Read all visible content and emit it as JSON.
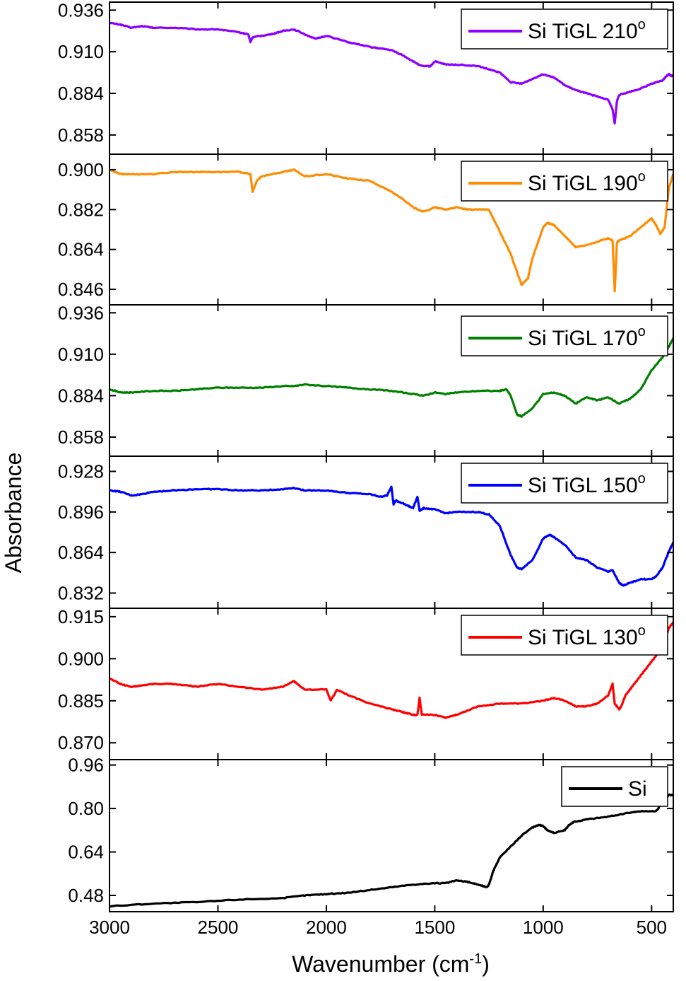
{
  "chart_data": {
    "type": "line",
    "ylabel": "Absorbance",
    "xlabel": "Wavenumber (cm",
    "xlabel_sup": "-1",
    "xlabel_end": ")",
    "x_reversed": true,
    "xlim": [
      3000,
      400
    ],
    "x_ticks": [
      "3000",
      "2500",
      "2000",
      "1500",
      "1000",
      "500"
    ],
    "legend_placement": "top-right in each panel",
    "panels": [
      {
        "name": "Si TiGL 210",
        "legend_label": "Si TiGL 210",
        "legend_sup": "o",
        "color": "#8b00ff",
        "ylim": [
          0.846,
          0.941
        ],
        "y_ticks": [
          "0.936",
          "0.910",
          "0.884",
          "0.858"
        ],
        "x": [
          3000,
          2950,
          2900,
          2850,
          2800,
          2700,
          2600,
          2500,
          2400,
          2360,
          2350,
          2340,
          2300,
          2250,
          2200,
          2150,
          2100,
          2050,
          2000,
          1900,
          1800,
          1750,
          1700,
          1650,
          1600,
          1560,
          1520,
          1500,
          1450,
          1400,
          1300,
          1250,
          1200,
          1150,
          1100,
          1050,
          1000,
          950,
          900,
          850,
          800,
          750,
          700,
          680,
          670,
          660,
          650,
          600,
          550,
          500,
          450,
          430,
          420,
          410,
          400
        ],
        "y": [
          0.928,
          0.927,
          0.925,
          0.926,
          0.925,
          0.925,
          0.924,
          0.924,
          0.922,
          0.921,
          0.916,
          0.919,
          0.92,
          0.921,
          0.923,
          0.924,
          0.921,
          0.918,
          0.92,
          0.916,
          0.913,
          0.912,
          0.911,
          0.908,
          0.904,
          0.901,
          0.901,
          0.904,
          0.902,
          0.902,
          0.901,
          0.899,
          0.897,
          0.891,
          0.89,
          0.893,
          0.896,
          0.894,
          0.889,
          0.886,
          0.884,
          0.882,
          0.88,
          0.874,
          0.865,
          0.879,
          0.883,
          0.885,
          0.887,
          0.89,
          0.892,
          0.895,
          0.896,
          0.895,
          0.895
        ]
      },
      {
        "name": "Si TiGL 190",
        "legend_label": "Si TiGL 190",
        "legend_sup": "o",
        "color": "#ff8c00",
        "ylim": [
          0.839,
          0.907
        ],
        "y_ticks": [
          "0.900",
          "0.882",
          "0.864",
          "0.846"
        ],
        "x": [
          3000,
          2950,
          2900,
          2800,
          2700,
          2600,
          2500,
          2400,
          2350,
          2340,
          2320,
          2300,
          2200,
          2150,
          2100,
          2000,
          1900,
          1800,
          1700,
          1650,
          1600,
          1550,
          1500,
          1450,
          1400,
          1350,
          1300,
          1250,
          1200,
          1150,
          1100,
          1070,
          1050,
          1000,
          980,
          950,
          900,
          850,
          800,
          700,
          680,
          670,
          660,
          650,
          600,
          550,
          500,
          480,
          460,
          440,
          420,
          400
        ],
        "y": [
          0.9,
          0.898,
          0.898,
          0.898,
          0.899,
          0.899,
          0.899,
          0.899,
          0.898,
          0.89,
          0.895,
          0.897,
          0.899,
          0.9,
          0.897,
          0.898,
          0.896,
          0.895,
          0.89,
          0.887,
          0.883,
          0.881,
          0.883,
          0.882,
          0.883,
          0.882,
          0.882,
          0.882,
          0.872,
          0.862,
          0.848,
          0.851,
          0.86,
          0.874,
          0.876,
          0.875,
          0.87,
          0.865,
          0.866,
          0.869,
          0.868,
          0.845,
          0.867,
          0.868,
          0.87,
          0.874,
          0.878,
          0.875,
          0.871,
          0.874,
          0.892,
          0.898
        ]
      },
      {
        "name": "Si TiGL 170",
        "legend_label": "Si TiGL 170",
        "legend_sup": "o",
        "color": "#008000",
        "ylim": [
          0.846,
          0.941
        ],
        "y_ticks": [
          "0.936",
          "0.910",
          "0.884",
          "0.858"
        ],
        "x": [
          3000,
          2950,
          2900,
          2800,
          2700,
          2600,
          2500,
          2400,
          2300,
          2200,
          2150,
          2100,
          2000,
          1900,
          1800,
          1700,
          1600,
          1550,
          1500,
          1450,
          1400,
          1300,
          1200,
          1170,
          1150,
          1120,
          1100,
          1050,
          1000,
          950,
          900,
          850,
          800,
          750,
          700,
          650,
          600,
          550,
          500,
          450,
          420,
          400
        ],
        "y": [
          0.888,
          0.886,
          0.886,
          0.887,
          0.887,
          0.888,
          0.889,
          0.889,
          0.889,
          0.89,
          0.89,
          0.891,
          0.89,
          0.889,
          0.888,
          0.887,
          0.885,
          0.884,
          0.886,
          0.885,
          0.886,
          0.887,
          0.887,
          0.888,
          0.884,
          0.872,
          0.871,
          0.876,
          0.885,
          0.886,
          0.884,
          0.879,
          0.883,
          0.881,
          0.883,
          0.879,
          0.882,
          0.888,
          0.9,
          0.908,
          0.915,
          0.92
        ]
      },
      {
        "name": "Si TiGL 150",
        "legend_label": "Si TiGL 150",
        "legend_sup": "o",
        "color": "#0000ff",
        "ylim": [
          0.82,
          0.94
        ],
        "y_ticks": [
          "0.928",
          "0.896",
          "0.864",
          "0.832"
        ],
        "x": [
          3000,
          2950,
          2900,
          2850,
          2800,
          2700,
          2600,
          2500,
          2400,
          2300,
          2200,
          2150,
          2100,
          2000,
          1900,
          1800,
          1750,
          1720,
          1700,
          1690,
          1680,
          1650,
          1600,
          1580,
          1570,
          1550,
          1500,
          1450,
          1400,
          1300,
          1250,
          1200,
          1150,
          1120,
          1100,
          1050,
          1000,
          970,
          950,
          900,
          850,
          800,
          750,
          700,
          680,
          650,
          630,
          600,
          550,
          500,
          480,
          450,
          420,
          400
        ],
        "y": [
          0.913,
          0.912,
          0.909,
          0.91,
          0.912,
          0.913,
          0.914,
          0.914,
          0.913,
          0.913,
          0.914,
          0.915,
          0.913,
          0.913,
          0.911,
          0.91,
          0.908,
          0.909,
          0.916,
          0.902,
          0.905,
          0.903,
          0.899,
          0.908,
          0.897,
          0.899,
          0.898,
          0.895,
          0.896,
          0.896,
          0.894,
          0.885,
          0.862,
          0.852,
          0.851,
          0.858,
          0.875,
          0.878,
          0.876,
          0.87,
          0.86,
          0.858,
          0.852,
          0.849,
          0.85,
          0.84,
          0.838,
          0.84,
          0.843,
          0.843,
          0.845,
          0.852,
          0.865,
          0.872
        ]
      },
      {
        "name": "Si TiGL 130",
        "legend_label": "Si TiGL 130",
        "legend_sup": "o",
        "color": "#ff0000",
        "ylim": [
          0.864,
          0.918
        ],
        "y_ticks": [
          "0.915",
          "0.900",
          "0.885",
          "0.870"
        ],
        "x": [
          3000,
          2950,
          2900,
          2800,
          2700,
          2600,
          2500,
          2400,
          2300,
          2200,
          2150,
          2100,
          2000,
          1980,
          1950,
          1900,
          1800,
          1700,
          1650,
          1600,
          1580,
          1570,
          1560,
          1500,
          1450,
          1400,
          1300,
          1200,
          1100,
          1000,
          950,
          900,
          850,
          800,
          750,
          700,
          680,
          670,
          650,
          640,
          620,
          600,
          550,
          500,
          450,
          420,
          400
        ],
        "y": [
          0.893,
          0.891,
          0.89,
          0.891,
          0.891,
          0.89,
          0.891,
          0.89,
          0.889,
          0.89,
          0.892,
          0.889,
          0.889,
          0.885,
          0.889,
          0.887,
          0.884,
          0.882,
          0.881,
          0.88,
          0.88,
          0.886,
          0.88,
          0.88,
          0.879,
          0.88,
          0.883,
          0.884,
          0.884,
          0.885,
          0.886,
          0.885,
          0.883,
          0.883,
          0.884,
          0.887,
          0.891,
          0.884,
          0.882,
          0.883,
          0.887,
          0.889,
          0.894,
          0.899,
          0.904,
          0.911,
          0.913
        ]
      },
      {
        "name": "Si",
        "legend_label": "Si",
        "legend_sup": "",
        "color": "#000000",
        "ylim": [
          0.42,
          0.98
        ],
        "y_ticks": [
          "0.96",
          "0.80",
          "0.64",
          "0.48"
        ],
        "x": [
          3000,
          2800,
          2600,
          2400,
          2200,
          2100,
          2000,
          1900,
          1800,
          1700,
          1600,
          1500,
          1450,
          1400,
          1350,
          1300,
          1260,
          1250,
          1230,
          1200,
          1150,
          1100,
          1050,
          1020,
          1000,
          980,
          950,
          900,
          880,
          860,
          800,
          700,
          600,
          550,
          480,
          450,
          420,
          400
        ],
        "y": [
          0.44,
          0.45,
          0.455,
          0.465,
          0.47,
          0.48,
          0.485,
          0.49,
          0.5,
          0.51,
          0.52,
          0.525,
          0.525,
          0.535,
          0.53,
          0.52,
          0.51,
          0.52,
          0.57,
          0.62,
          0.66,
          0.7,
          0.73,
          0.74,
          0.735,
          0.72,
          0.71,
          0.72,
          0.74,
          0.75,
          0.76,
          0.77,
          0.785,
          0.79,
          0.79,
          0.82,
          0.85,
          0.85
        ]
      }
    ]
  }
}
